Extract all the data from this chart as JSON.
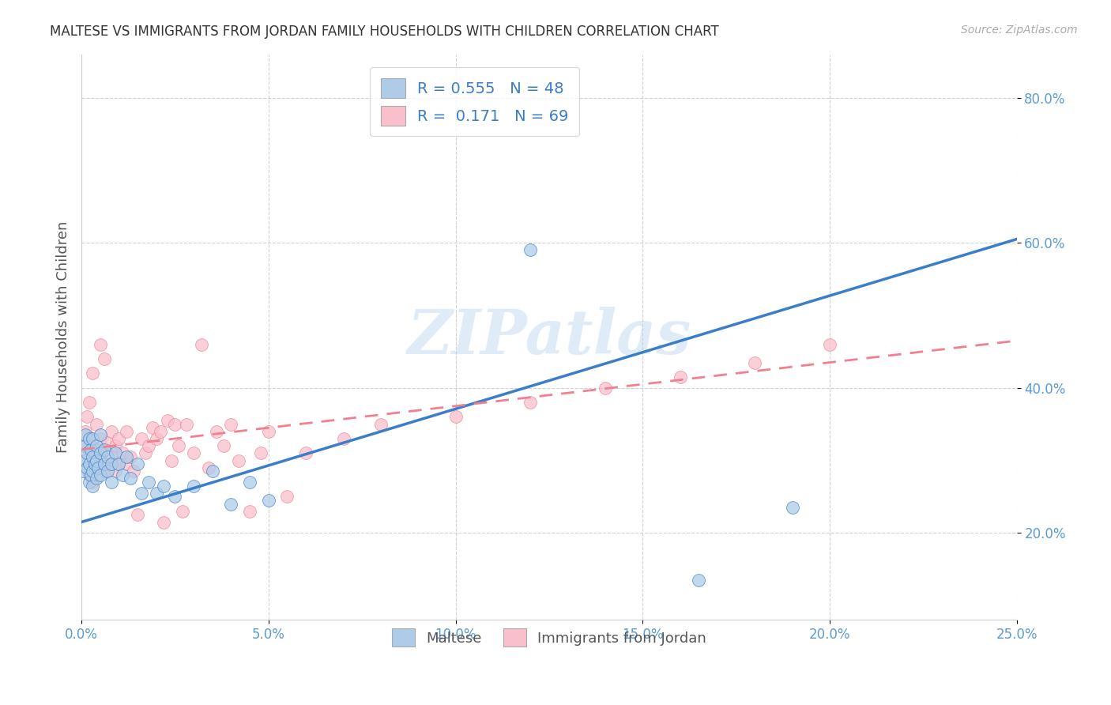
{
  "title": "MALTESE VS IMMIGRANTS FROM JORDAN FAMILY HOUSEHOLDS WITH CHILDREN CORRELATION CHART",
  "source": "Source: ZipAtlas.com",
  "ylabel": "Family Households with Children",
  "xlim": [
    0.0,
    0.25
  ],
  "ylim": [
    0.08,
    0.86
  ],
  "ytick_vals": [
    0.2,
    0.4,
    0.6,
    0.8
  ],
  "xtick_vals": [
    0.0,
    0.05,
    0.1,
    0.15,
    0.2,
    0.25
  ],
  "ytick_labels": [
    "20.0%",
    "40.0%",
    "60.0%",
    "80.0%"
  ],
  "xtick_labels": [
    "0.0%",
    "5.0%",
    "10.0%",
    "15.0%",
    "20.0%",
    "25.0%"
  ],
  "legend_labels": [
    "Maltese",
    "Immigrants from Jordan"
  ],
  "series1_color": "#aecce8",
  "series2_color": "#f9c0cb",
  "line1_color": "#3a7dc9",
  "line2_color": "#f08090",
  "r1": 0.555,
  "n1": 48,
  "r2": 0.171,
  "n2": 69,
  "watermark": "ZIPatlas",
  "line1_x0": 0.0,
  "line1_y0": 0.215,
  "line1_x1": 0.25,
  "line1_y1": 0.605,
  "line2_x0": 0.0,
  "line2_y0": 0.315,
  "line2_x1": 0.25,
  "line2_y1": 0.465,
  "maltese_x": [
    0.0005,
    0.001,
    0.001,
    0.001,
    0.0015,
    0.0015,
    0.002,
    0.002,
    0.002,
    0.0025,
    0.0025,
    0.003,
    0.003,
    0.003,
    0.003,
    0.0035,
    0.004,
    0.004,
    0.004,
    0.0045,
    0.005,
    0.005,
    0.005,
    0.006,
    0.006,
    0.007,
    0.007,
    0.008,
    0.008,
    0.009,
    0.01,
    0.011,
    0.012,
    0.013,
    0.015,
    0.016,
    0.018,
    0.02,
    0.022,
    0.025,
    0.03,
    0.035,
    0.04,
    0.045,
    0.05,
    0.12,
    0.165,
    0.19
  ],
  "maltese_y": [
    0.285,
    0.3,
    0.32,
    0.335,
    0.29,
    0.31,
    0.27,
    0.295,
    0.33,
    0.28,
    0.315,
    0.265,
    0.285,
    0.305,
    0.33,
    0.295,
    0.275,
    0.3,
    0.32,
    0.29,
    0.28,
    0.31,
    0.335,
    0.295,
    0.315,
    0.285,
    0.305,
    0.27,
    0.295,
    0.31,
    0.295,
    0.28,
    0.305,
    0.275,
    0.295,
    0.255,
    0.27,
    0.255,
    0.265,
    0.25,
    0.265,
    0.285,
    0.24,
    0.27,
    0.245,
    0.59,
    0.135,
    0.235
  ],
  "jordan_x": [
    0.0005,
    0.001,
    0.001,
    0.0015,
    0.0015,
    0.002,
    0.002,
    0.002,
    0.0025,
    0.003,
    0.003,
    0.003,
    0.003,
    0.004,
    0.004,
    0.004,
    0.005,
    0.005,
    0.005,
    0.006,
    0.006,
    0.006,
    0.007,
    0.007,
    0.008,
    0.008,
    0.009,
    0.009,
    0.01,
    0.01,
    0.011,
    0.012,
    0.012,
    0.013,
    0.014,
    0.015,
    0.016,
    0.017,
    0.018,
    0.019,
    0.02,
    0.021,
    0.022,
    0.023,
    0.024,
    0.025,
    0.026,
    0.027,
    0.028,
    0.03,
    0.032,
    0.034,
    0.036,
    0.038,
    0.04,
    0.042,
    0.045,
    0.048,
    0.05,
    0.055,
    0.06,
    0.07,
    0.08,
    0.1,
    0.12,
    0.14,
    0.16,
    0.18,
    0.2
  ],
  "jordan_y": [
    0.3,
    0.32,
    0.34,
    0.29,
    0.36,
    0.28,
    0.31,
    0.38,
    0.3,
    0.27,
    0.295,
    0.33,
    0.42,
    0.29,
    0.315,
    0.35,
    0.3,
    0.33,
    0.46,
    0.285,
    0.315,
    0.44,
    0.295,
    0.325,
    0.305,
    0.34,
    0.285,
    0.32,
    0.295,
    0.33,
    0.31,
    0.295,
    0.34,
    0.305,
    0.285,
    0.225,
    0.33,
    0.31,
    0.32,
    0.345,
    0.33,
    0.34,
    0.215,
    0.355,
    0.3,
    0.35,
    0.32,
    0.23,
    0.35,
    0.31,
    0.46,
    0.29,
    0.34,
    0.32,
    0.35,
    0.3,
    0.23,
    0.31,
    0.34,
    0.25,
    0.31,
    0.33,
    0.35,
    0.36,
    0.38,
    0.4,
    0.415,
    0.435,
    0.46
  ]
}
